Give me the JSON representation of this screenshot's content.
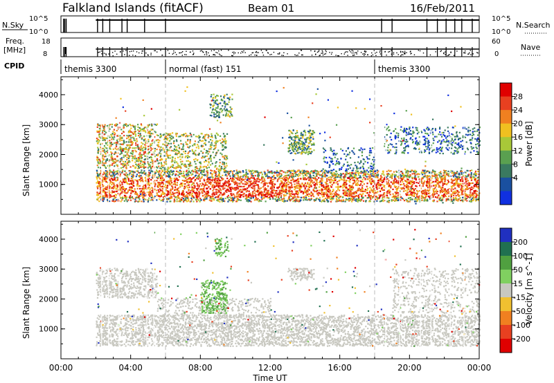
{
  "header": {
    "station": "Falkland Islands (fitACF)",
    "beam": "Beam 01",
    "date": "16/Feb/2011"
  },
  "strips": {
    "nsky": {
      "label": "N.Sky",
      "ticks": [
        "10^5",
        "10^0"
      ]
    },
    "nsearch": {
      "label": "N.Search",
      "ticks": [
        "10^5",
        "10^0"
      ]
    },
    "freq": {
      "label_line1": "Freq.",
      "label_line2": "[MHz]",
      "ticks": [
        "18",
        "8"
      ]
    },
    "nave": {
      "label": "Nave",
      "ticks": [
        "60",
        "0"
      ]
    },
    "cpid": {
      "label": "CPID",
      "segments": [
        {
          "text": "themis 3300",
          "start_hour": 0
        },
        {
          "text": "normal (fast) 151",
          "start_hour": 6
        },
        {
          "text": "themis 3300",
          "start_hour": 18
        }
      ]
    }
  },
  "chart_data": [
    {
      "type": "heatmap",
      "title": "",
      "xlabel": "",
      "ylabel": "Slant Range [km]",
      "x_range_hours": [
        0,
        24
      ],
      "ylim": [
        0,
        4600
      ],
      "y_ticks": [
        "1000",
        "2000",
        "3000",
        "4000"
      ],
      "colorbar": {
        "label": "Power [dB]",
        "ticks": [
          "4",
          "8",
          "12",
          "16",
          "20",
          "24",
          "28"
        ],
        "range": [
          0,
          30
        ],
        "colors": [
          "#1030e0",
          "#1a50a0",
          "#3a7a60",
          "#5aa050",
          "#a8c838",
          "#f0c020",
          "#f08020",
          "#e84020",
          "#e00000"
        ]
      },
      "regions": [
        {
          "hours": [
            2.0,
            24.0
          ],
          "range_km": [
            400,
            1400
          ],
          "level": "high",
          "typical_db": 24
        },
        {
          "hours": [
            7.5,
            12.5
          ],
          "range_km": [
            500,
            1200
          ],
          "level": "very high",
          "typical_db": 28
        },
        {
          "hours": [
            2.0,
            5.5
          ],
          "range_km": [
            1500,
            3000
          ],
          "level": "medium",
          "typical_db": 16
        },
        {
          "hours": [
            8.0,
            9.5
          ],
          "range_km": [
            1500,
            2600
          ],
          "level": "medium",
          "typical_db": 14
        },
        {
          "hours": [
            13.0,
            14.5
          ],
          "range_km": [
            2000,
            2800
          ],
          "level": "medium",
          "typical_db": 14
        },
        {
          "hours": [
            18.5,
            24.0
          ],
          "range_km": [
            2000,
            2900
          ],
          "level": "low",
          "typical_db": 8
        }
      ]
    },
    {
      "type": "heatmap",
      "title": "",
      "xlabel": "Time UT",
      "ylabel": "Slant Range [km]",
      "x_range_hours": [
        0,
        24
      ],
      "x_ticks": [
        "00:00",
        "04:00",
        "08:00",
        "12:00",
        "16:00",
        "20:00",
        "00:00"
      ],
      "ylim": [
        0,
        4600
      ],
      "y_ticks": [
        "1000",
        "2000",
        "3000",
        "4000"
      ],
      "colorbar": {
        "label": "Velocity [m s^-1]",
        "ticks": [
          "200",
          "100",
          "50",
          "15",
          "-15",
          "-50",
          "-100",
          "-200"
        ],
        "colors": [
          "#2030c0",
          "#207050",
          "#50a040",
          "#80d060",
          "#c8c8c0",
          "#f0c030",
          "#f08020",
          "#e84020",
          "#e00000"
        ]
      },
      "regions": [
        {
          "hours": [
            2.0,
            24.0
          ],
          "range_km": [
            400,
            1400
          ],
          "category": "ground scatter (-15 to 15)"
        },
        {
          "hours": [
            8.0,
            9.5
          ],
          "range_km": [
            1500,
            2600
          ],
          "category": "positive velocity (50 to 100)"
        },
        {
          "hours": [
            2.0,
            5.5
          ],
          "range_km": [
            2000,
            3000
          ],
          "category": "ground scatter (-15 to 15)"
        }
      ]
    }
  ],
  "colors": {
    "mode_line": "#bbbbbb",
    "ground_scatter": "#c8c8c0"
  }
}
